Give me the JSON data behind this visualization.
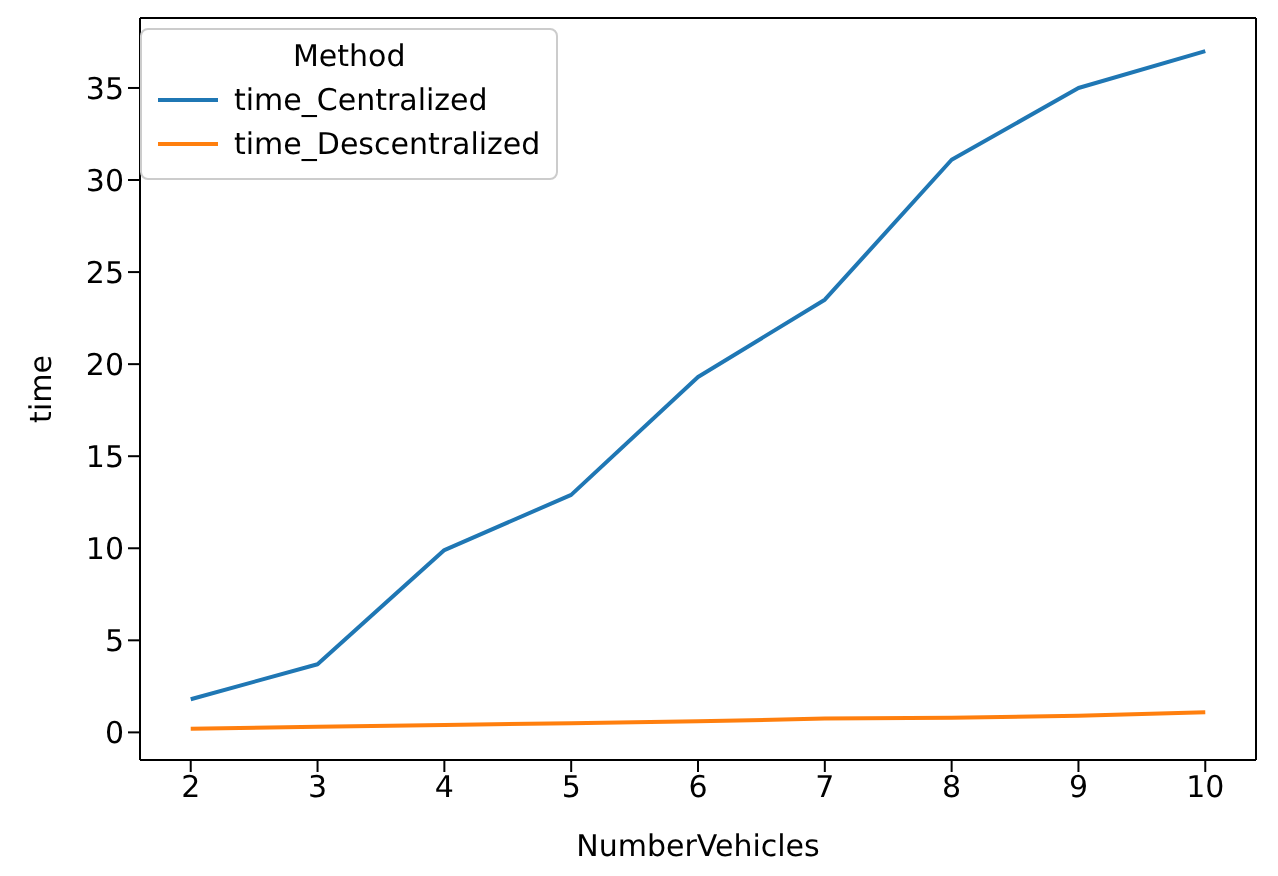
{
  "chart_data": {
    "type": "line",
    "xlabel": "NumberVehicles",
    "ylabel": "time",
    "legend_title": "Method",
    "legend": "top left",
    "marker": "none",
    "line_style": "solid",
    "x": [
      2,
      3,
      4,
      5,
      6,
      7,
      8,
      9,
      10
    ],
    "xlim": [
      1.6,
      10.4
    ],
    "xticks": [
      2,
      3,
      4,
      5,
      6,
      7,
      8,
      9,
      10
    ],
    "ylim": [
      -1.5,
      38.8
    ],
    "yticks": [
      0,
      5,
      10,
      15,
      20,
      25,
      30,
      35
    ],
    "series": [
      {
        "name": "time_Centralized",
        "color": "#1f77b4",
        "values": [
          1.8,
          3.7,
          9.9,
          12.9,
          19.3,
          23.5,
          31.1,
          35.0,
          37.0
        ]
      },
      {
        "name": "time_Descentralized",
        "color": "#ff7f0e",
        "values": [
          0.2,
          0.3,
          0.4,
          0.5,
          0.6,
          0.75,
          0.8,
          0.9,
          1.1
        ]
      }
    ]
  }
}
